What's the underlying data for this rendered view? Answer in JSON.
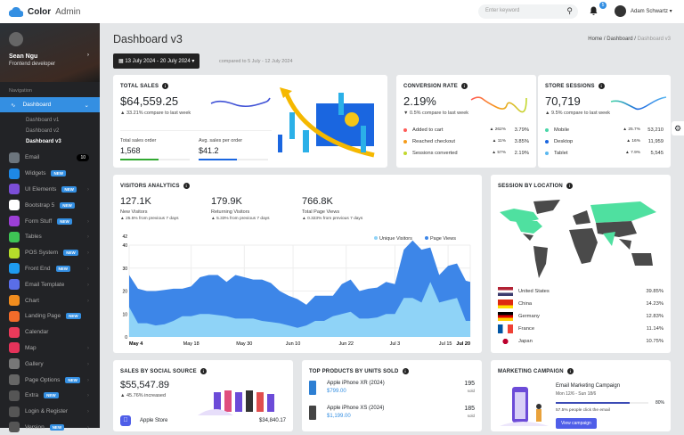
{
  "app": {
    "brand_bold": "Color",
    "brand_light": "Admin"
  },
  "header": {
    "search_placeholder": "Enter keyword",
    "notif_count": "5",
    "user": "Adam Schwartz"
  },
  "profile": {
    "name": "Sean Ngu",
    "role": "Frontend developer"
  },
  "sidebar": {
    "heading": "Navigation",
    "active": "Dashboard",
    "sub": [
      "Dashboard v1",
      "Dashboard v2",
      "Dashboard v3"
    ],
    "items": [
      {
        "label": "Email",
        "color": "#6c757d",
        "count": "10"
      },
      {
        "label": "Widgets",
        "color": "#1e88e5",
        "badge": "NEW"
      },
      {
        "label": "UI Elements",
        "color": "#7b4ed8",
        "badge": "NEW",
        "chev": true
      },
      {
        "label": "Bootstrap 5",
        "color": "#ffffff",
        "badge": "NEW"
      },
      {
        "label": "Form Stuff",
        "color": "#9c3fd6",
        "badge": "NEW",
        "chev": true
      },
      {
        "label": "Tables",
        "color": "#3ec455",
        "chev": true
      },
      {
        "label": "POS System",
        "color": "#b5dc2a",
        "badge": "NEW",
        "chev": true
      },
      {
        "label": "Front End",
        "color": "#1e9bf0",
        "badge": "NEW",
        "chev": true
      },
      {
        "label": "Email Template",
        "color": "#5a6ee8",
        "chev": true
      },
      {
        "label": "Chart",
        "color": "#f08c1e",
        "chev": true
      },
      {
        "label": "Landing Page",
        "color": "#f26b2a",
        "badge": "NEW"
      },
      {
        "label": "Calendar",
        "color": "#ea3a5a"
      },
      {
        "label": "Map",
        "color": "#e5335a",
        "chev": true
      },
      {
        "label": "Gallery",
        "color": "#777777",
        "chev": true
      },
      {
        "label": "Page Options",
        "color": "#666666",
        "badge": "NEW",
        "chev": true
      },
      {
        "label": "Extra",
        "color": "#555555",
        "badge": "NEW",
        "chev": true
      },
      {
        "label": "Login & Register",
        "color": "#555555",
        "chev": true
      },
      {
        "label": "Version",
        "color": "#555555",
        "badge": "NEW",
        "chev": true
      }
    ]
  },
  "page": {
    "title": "Dashboard v3",
    "breadcrumb": [
      "Home",
      "Dashboard",
      "Dashboard v3"
    ],
    "date_range": "13 July 2024 - 20 July 2024",
    "compare": "compared to 5 July - 12 July 2024"
  },
  "total_sales": {
    "title": "TOTAL SALES",
    "value": "$64,559.25",
    "change": "33.21% compare to last week",
    "orders_label": "Total sales order",
    "orders": "1,568",
    "orders_progress": 55,
    "avg_label": "Avg. sales per order",
    "avg": "$41.2",
    "avg_progress": 55,
    "color": "#3f51d6"
  },
  "conversion": {
    "title": "CONVERSION RATE",
    "value": "2.19%",
    "change": "0.5% compare to last week",
    "rows": [
      {
        "label": "Added to cart",
        "color": "#ff5b57",
        "change": "262%",
        "value": "3.79%"
      },
      {
        "label": "Reached checkout",
        "color": "#f59c1a",
        "change": "11%",
        "value": "3.85%"
      },
      {
        "label": "Sessions converted",
        "color": "#c2d82e",
        "change": "57%",
        "value": "2.19%"
      }
    ]
  },
  "sessions": {
    "title": "STORE SESSIONS",
    "value": "70,719",
    "change": "9.5% compare to last week",
    "rows": [
      {
        "label": "Mobile",
        "color": "#49d6a8",
        "change": "25.7%",
        "value": "53,210"
      },
      {
        "label": "Desktop",
        "color": "#1a66e0",
        "change": "16%",
        "value": "11,959"
      },
      {
        "label": "Tablet",
        "color": "#5ab8f0",
        "change": "7.9%",
        "value": "5,545"
      }
    ]
  },
  "visitors": {
    "title": "VISITORS ANALYTICS",
    "stats": [
      {
        "value": "127.1K",
        "label": "New Visitors",
        "change": "25.5% from previous 7 days"
      },
      {
        "value": "179.9K",
        "label": "Returning Visitors",
        "change": "5.33% from previous 7 days"
      },
      {
        "value": "766.8K",
        "label": "Total Page Views",
        "change": "0.323% from previous 7 days"
      }
    ]
  },
  "chart_data": {
    "type": "area",
    "grid": true,
    "legend": "top-right",
    "ylim": [
      0,
      42
    ],
    "yticks": [
      "0",
      "10",
      "20",
      "30",
      "40",
      "42"
    ],
    "xticks": [
      {
        "label": "May 4",
        "date": "2024-05-04"
      },
      {
        "label": "May 18",
        "date": "2024-05-18"
      },
      {
        "label": "May 30",
        "date": "2024-05-30"
      },
      {
        "label": "Jun 10",
        "date": "2024-06-10"
      },
      {
        "label": "Jun 22",
        "date": "2024-06-22"
      },
      {
        "label": "Jul 3",
        "date": "2024-07-03"
      },
      {
        "label": "Jul 15",
        "date": "2024-07-15"
      },
      {
        "label": "Jul 20",
        "date": "2024-07-20"
      }
    ],
    "x": [
      "2024-05-04",
      "2024-05-06",
      "2024-05-08",
      "2024-05-10",
      "2024-05-12",
      "2024-05-14",
      "2024-05-16",
      "2024-05-18",
      "2024-05-20",
      "2024-05-22",
      "2024-05-24",
      "2024-05-26",
      "2024-05-28",
      "2024-05-30",
      "2024-06-01",
      "2024-06-03",
      "2024-06-05",
      "2024-06-07",
      "2024-06-09",
      "2024-06-11",
      "2024-06-13",
      "2024-06-15",
      "2024-06-17",
      "2024-06-19",
      "2024-06-21",
      "2024-06-23",
      "2024-06-25",
      "2024-06-27",
      "2024-06-29",
      "2024-07-01",
      "2024-07-03",
      "2024-07-05",
      "2024-07-07",
      "2024-07-09",
      "2024-07-11",
      "2024-07-13",
      "2024-07-15",
      "2024-07-17",
      "2024-07-19",
      "2024-07-20"
    ],
    "series": [
      {
        "name": "Page Views",
        "color": "#3d86e8",
        "values": [
          27,
          21,
          20,
          20,
          20.5,
          21,
          21,
          22,
          26,
          27,
          27,
          24,
          27,
          26,
          25,
          25,
          23.5,
          20,
          18,
          16.5,
          14,
          18,
          18,
          18,
          23,
          25,
          20,
          21,
          21.5,
          24,
          23,
          38,
          42,
          38,
          39,
          27,
          31,
          32,
          24.5,
          24
        ]
      },
      {
        "name": "Unique Visitors",
        "color": "#8fd3f7",
        "values": [
          13,
          6,
          6,
          5,
          5.5,
          7,
          9,
          9,
          10,
          10,
          9.5,
          9,
          8,
          8,
          8,
          7,
          6.5,
          6,
          5,
          4,
          5,
          7,
          7,
          9,
          10,
          11,
          8,
          8,
          8.5,
          10,
          10,
          17,
          17,
          15,
          24,
          15,
          16,
          17,
          7,
          7
        ]
      }
    ]
  },
  "location": {
    "title": "SESSION BY LOCATION",
    "highlight_color": "#4fe0a0",
    "rows": [
      {
        "country": "United States",
        "value": "39.85%"
      },
      {
        "country": "China",
        "value": "14.23%"
      },
      {
        "country": "Germany",
        "value": "12.83%"
      },
      {
        "country": "France",
        "value": "11.14%"
      },
      {
        "country": "Japan",
        "value": "10.75%"
      }
    ]
  },
  "social": {
    "title": "SALES BY SOCIAL SOURCE",
    "value": "$55,547.89",
    "change": "45.76% increased",
    "rows": [
      {
        "label": "Apple Store",
        "value": "$34,840.17"
      }
    ]
  },
  "products": {
    "title": "TOP PRODUCTS BY UNITS SOLD",
    "items": [
      {
        "name": "Apple iPhone XR (2024)",
        "price": "$799.00",
        "units": "195",
        "unit_label": "sold"
      },
      {
        "name": "Apple iPhone XS (2024)",
        "price": "$1,199.00",
        "units": "185",
        "unit_label": "sold"
      }
    ]
  },
  "marketing": {
    "title": "MARKETING CAMPAIGN",
    "name": "Email Marketing Campaign",
    "dates": "Mon 12/6 - Sun 18/6",
    "progress": 80,
    "progress_label": "80%",
    "note": "57.5% people click the email",
    "button": "View campaign"
  }
}
